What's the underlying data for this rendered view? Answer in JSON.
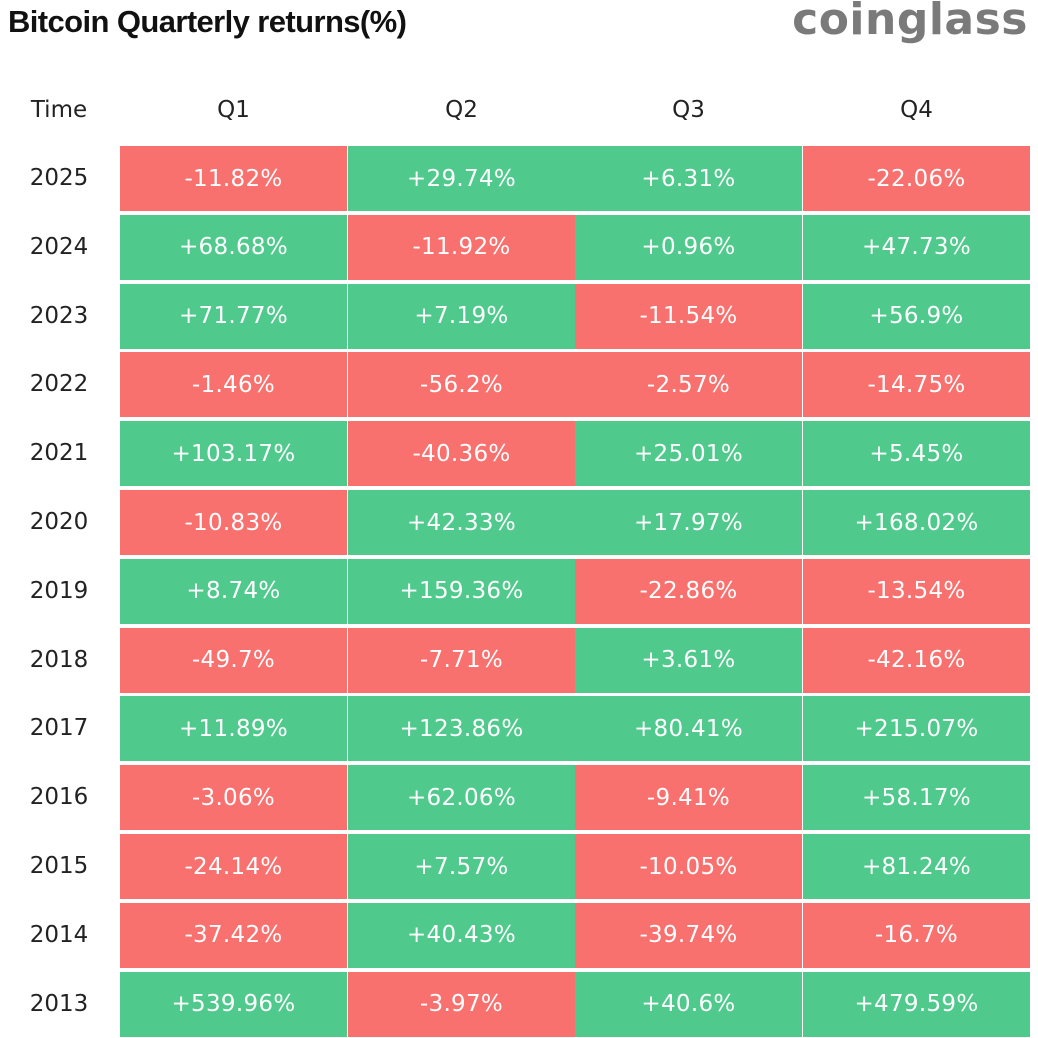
{
  "header": {
    "title": "Bitcoin Quarterly returns(%)",
    "brand": "coinglass"
  },
  "colors": {
    "positive": "#4fca8c",
    "negative": "#f9716f"
  },
  "chart_data": {
    "type": "heatmap",
    "title": "Bitcoin Quarterly returns(%)",
    "row_header": "Time",
    "columns": [
      "Q1",
      "Q2",
      "Q3",
      "Q4"
    ],
    "unit": "%",
    "rows": [
      {
        "year": "2025",
        "labels": [
          "-11.82%",
          "+29.74%",
          "+6.31%",
          "-22.06%"
        ],
        "values": [
          -11.82,
          29.74,
          6.31,
          -22.06
        ]
      },
      {
        "year": "2024",
        "labels": [
          "+68.68%",
          "-11.92%",
          "+0.96%",
          "+47.73%"
        ],
        "values": [
          68.68,
          -11.92,
          0.96,
          47.73
        ]
      },
      {
        "year": "2023",
        "labels": [
          "+71.77%",
          "+7.19%",
          "-11.54%",
          "+56.9%"
        ],
        "values": [
          71.77,
          7.19,
          -11.54,
          56.9
        ]
      },
      {
        "year": "2022",
        "labels": [
          "-1.46%",
          "-56.2%",
          "-2.57%",
          "-14.75%"
        ],
        "values": [
          -1.46,
          -56.2,
          -2.57,
          -14.75
        ]
      },
      {
        "year": "2021",
        "labels": [
          "+103.17%",
          "-40.36%",
          "+25.01%",
          "+5.45%"
        ],
        "values": [
          103.17,
          -40.36,
          25.01,
          5.45
        ]
      },
      {
        "year": "2020",
        "labels": [
          "-10.83%",
          "+42.33%",
          "+17.97%",
          "+168.02%"
        ],
        "values": [
          -10.83,
          42.33,
          17.97,
          168.02
        ]
      },
      {
        "year": "2019",
        "labels": [
          "+8.74%",
          "+159.36%",
          "-22.86%",
          "-13.54%"
        ],
        "values": [
          8.74,
          159.36,
          -22.86,
          -13.54
        ]
      },
      {
        "year": "2018",
        "labels": [
          "-49.7%",
          "-7.71%",
          "+3.61%",
          "-42.16%"
        ],
        "values": [
          -49.7,
          -7.71,
          3.61,
          -42.16
        ]
      },
      {
        "year": "2017",
        "labels": [
          "+11.89%",
          "+123.86%",
          "+80.41%",
          "+215.07%"
        ],
        "values": [
          11.89,
          123.86,
          80.41,
          215.07
        ]
      },
      {
        "year": "2016",
        "labels": [
          "-3.06%",
          "+62.06%",
          "-9.41%",
          "+58.17%"
        ],
        "values": [
          -3.06,
          62.06,
          -9.41,
          58.17
        ]
      },
      {
        "year": "2015",
        "labels": [
          "-24.14%",
          "+7.57%",
          "-10.05%",
          "+81.24%"
        ],
        "values": [
          -24.14,
          7.57,
          -10.05,
          81.24
        ]
      },
      {
        "year": "2014",
        "labels": [
          "-37.42%",
          "+40.43%",
          "-39.74%",
          "-16.7%"
        ],
        "values": [
          -37.42,
          40.43,
          -39.74,
          -16.7
        ]
      },
      {
        "year": "2013",
        "labels": [
          "+539.96%",
          "-3.97%",
          "+40.6%",
          "+479.59%"
        ],
        "values": [
          539.96,
          -3.97,
          40.6,
          479.59
        ]
      }
    ]
  }
}
